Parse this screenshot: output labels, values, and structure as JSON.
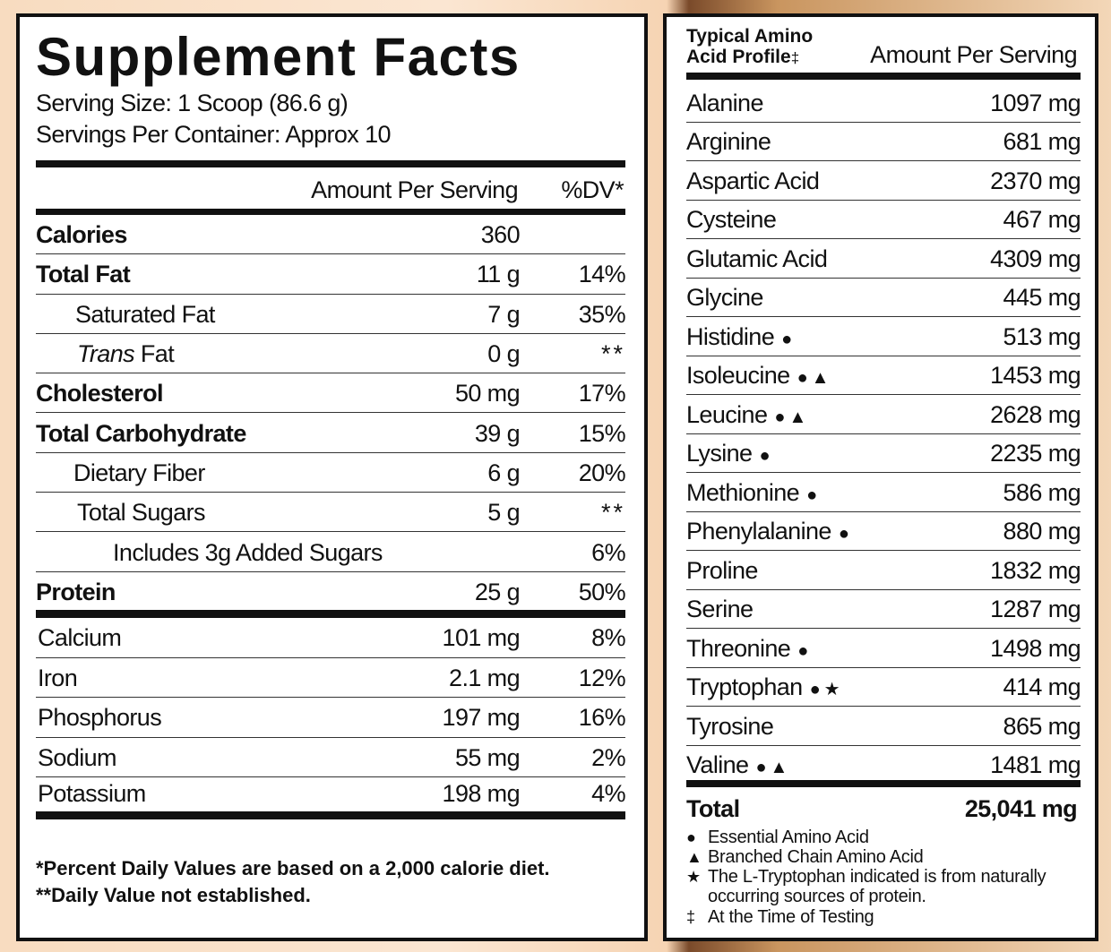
{
  "left": {
    "title": "Supplement Facts",
    "serving_size": "Serving Size: 1 Scoop (86.6 g)",
    "servings_per_container": "Servings Per Container: Approx 10",
    "header": {
      "amount": "Amount Per Serving",
      "dv": "%DV*"
    },
    "rows": [
      {
        "name": "Calories",
        "amount": "360"
      },
      {
        "name": "Total Fat",
        "amount": "11 g",
        "dv": "14%"
      },
      {
        "name": "Saturated Fat",
        "amount": "7 g",
        "dv": "35%"
      },
      {
        "name_italic": "Trans",
        "name": " Fat",
        "amount": "0 g",
        "dv": "**"
      },
      {
        "name": "Cholesterol",
        "amount": "50 mg",
        "dv": "17%"
      },
      {
        "name": "Total Carbohydrate",
        "amount": "39 g",
        "dv": "15%"
      },
      {
        "name": "Dietary Fiber",
        "amount": "6 g",
        "dv": "20%"
      },
      {
        "name": "Total Sugars",
        "amount": "5 g",
        "dv": "**"
      },
      {
        "name": "Includes 3g Added Sugars",
        "dv": "6%"
      },
      {
        "name": "Protein",
        "amount": "25 g",
        "dv": "50%"
      }
    ],
    "minerals": [
      {
        "name": "Calcium",
        "amount": "101 mg",
        "dv": "8%"
      },
      {
        "name": "Iron",
        "amount": "2.1 mg",
        "dv": "12%"
      },
      {
        "name": "Phosphorus",
        "amount": "197 mg",
        "dv": "16%"
      },
      {
        "name": "Sodium",
        "amount": "55 mg",
        "dv": "2%"
      },
      {
        "name": "Potassium",
        "amount": "198 mg",
        "dv": "4%"
      }
    ],
    "footnotes": [
      "*Percent Daily Values are based on a 2,000 calorie diet.",
      "**Daily Value not established."
    ]
  },
  "right": {
    "title_lines": [
      "Typical Amino",
      "Acid Profile"
    ],
    "title_mark": "‡",
    "header_amount": "Amount Per Serving",
    "rows": [
      {
        "name": "Alanine",
        "amount": "1097 mg"
      },
      {
        "name": "Arginine",
        "amount": "681 mg"
      },
      {
        "name": "Aspartic Acid",
        "amount": "2370 mg"
      },
      {
        "name": "Cysteine",
        "amount": "467 mg"
      },
      {
        "name": "Glutamic Acid",
        "amount": "4309 mg"
      },
      {
        "name": "Glycine",
        "amount": "445 mg"
      },
      {
        "name": "Histidine",
        "marks": "●",
        "amount": "513 mg"
      },
      {
        "name": "Isoleucine",
        "marks": "●▲",
        "amount": "1453 mg"
      },
      {
        "name": "Leucine",
        "marks": "●▲",
        "amount": "2628 mg"
      },
      {
        "name": "Lysine",
        "marks": "●",
        "amount": "2235 mg"
      },
      {
        "name": "Methionine",
        "marks": "●",
        "amount": "586 mg"
      },
      {
        "name": "Phenylalanine",
        "marks": "●",
        "amount": "880 mg"
      },
      {
        "name": "Proline",
        "amount": "1832 mg"
      },
      {
        "name": "Serine",
        "amount": "1287 mg"
      },
      {
        "name": "Threonine",
        "marks": "●",
        "amount": "1498 mg"
      },
      {
        "name": "Tryptophan",
        "marks": "●★",
        "amount": "414 mg"
      },
      {
        "name": "Tyrosine",
        "amount": "865 mg"
      },
      {
        "name": "Valine",
        "marks": "●▲",
        "amount": "1481 mg"
      }
    ],
    "total": {
      "label": "Total",
      "amount": "25,041 mg"
    },
    "legend": [
      {
        "symbol": "●",
        "text": "Essential Amino Acid"
      },
      {
        "symbol": "▲",
        "text": "Branched Chain Amino Acid"
      },
      {
        "symbol": "★",
        "text": "The L-Tryptophan indicated is from naturally occurring sources of protein."
      },
      {
        "symbol": "‡",
        "text": "At the Time of Testing"
      }
    ]
  }
}
